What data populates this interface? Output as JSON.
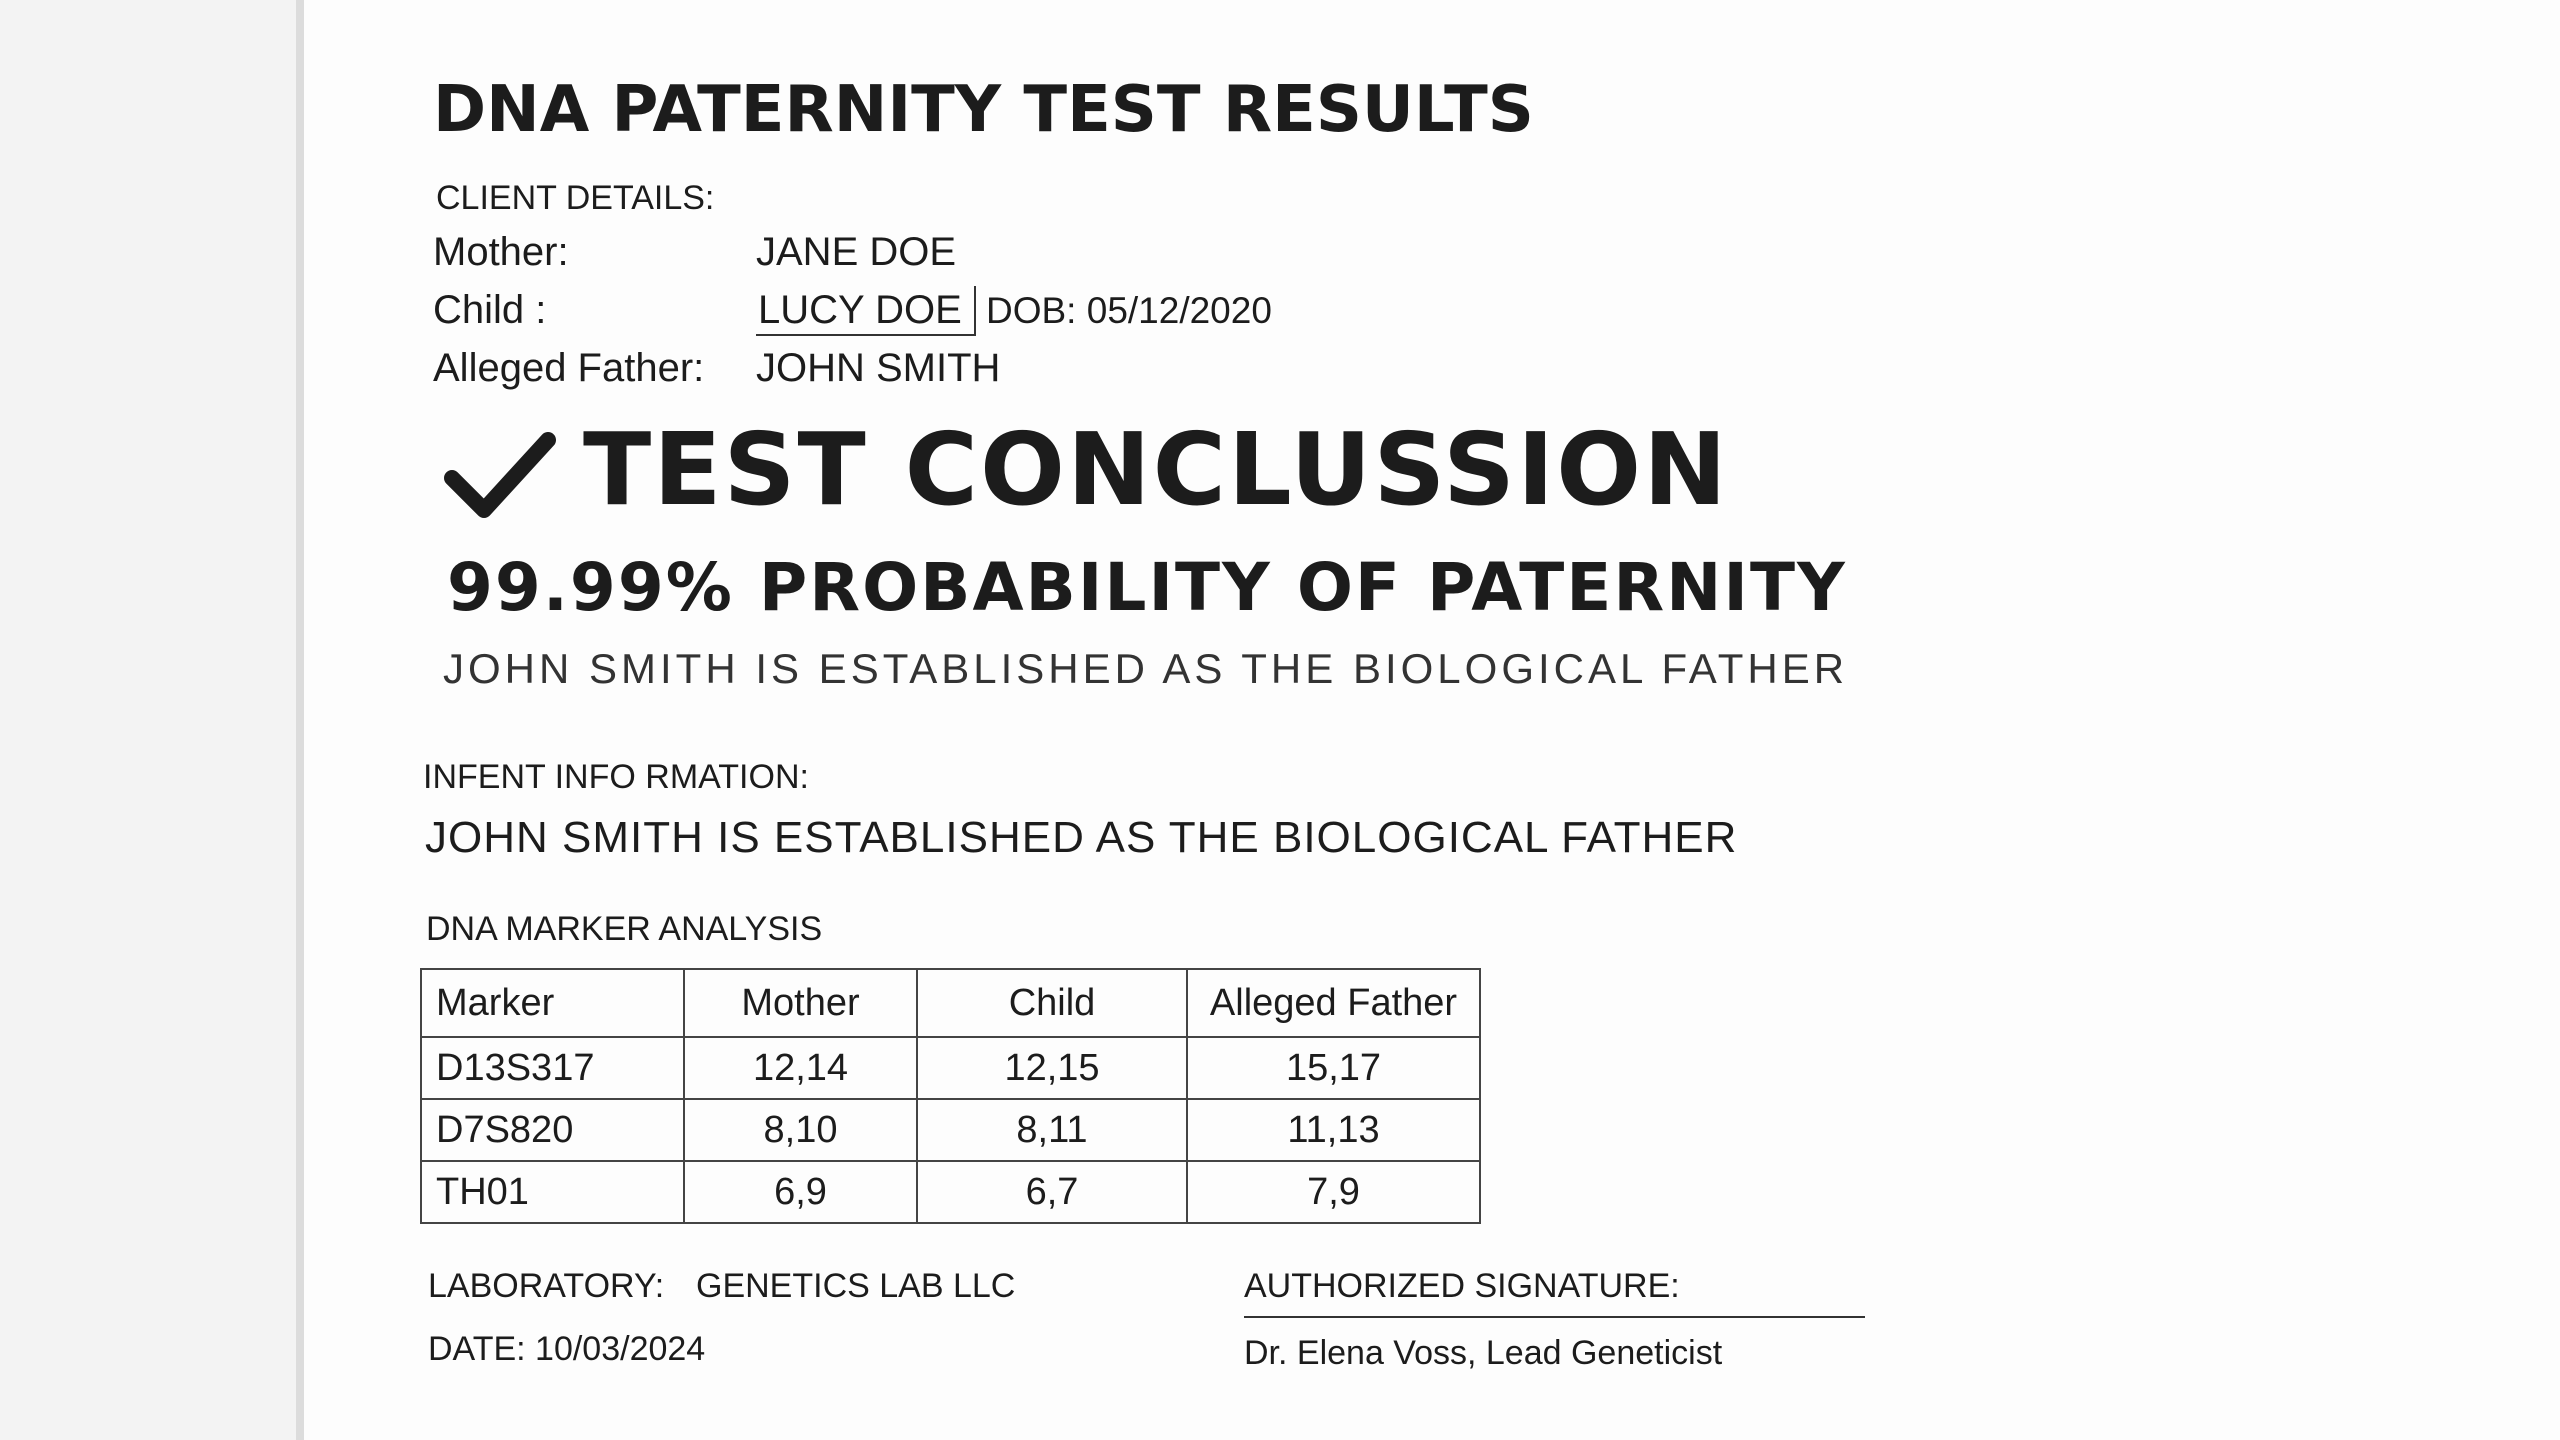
{
  "header": {
    "title": "DNA PATERNITY TEST RESULTS"
  },
  "client": {
    "label": "CLIENT DETAILS:",
    "rows": [
      {
        "label": "Mother:",
        "value": "JANE DOE"
      },
      {
        "label": "Child :",
        "value": "LUCY DOE",
        "dob": "DOB: 05/12/2020"
      },
      {
        "label": "Alleged Father:",
        "value": "JOHN SMITH"
      }
    ]
  },
  "conclusion": {
    "heading": "TEST CONCLUSSION",
    "probability": "99.99% PROBABILITY OF PATERNITY",
    "statement": "JOHN SMITH IS ESTABLISHED AS THE BIOLOGICAL FATHER"
  },
  "infant": {
    "label": "INFENT INFO RMATION:",
    "text": "JOHN SMITH IS ESTABLISHED AS THE BIOLOGICAL FATHER"
  },
  "table": {
    "title": "DNA MARKER ANALYSIS",
    "header": [
      "Marker",
      "Mother",
      "Child",
      "Alleged Father"
    ],
    "rows": [
      [
        "D13S317",
        "12,14",
        "12,15",
        "15,17"
      ],
      [
        "D7S820",
        "8,10",
        "8,11",
        "11,13"
      ],
      [
        "TH01",
        "6,9",
        "6,7",
        "7,9"
      ]
    ]
  },
  "footer": {
    "lab_label": "LABORATORY:",
    "lab_value": "GENETICS LAB LLC",
    "date": "DATE: 10/03/2024",
    "signature_label": "AUTHORIZED SIGNATURE:",
    "signer": "Dr. Elena Voss, Lead Geneticist"
  }
}
